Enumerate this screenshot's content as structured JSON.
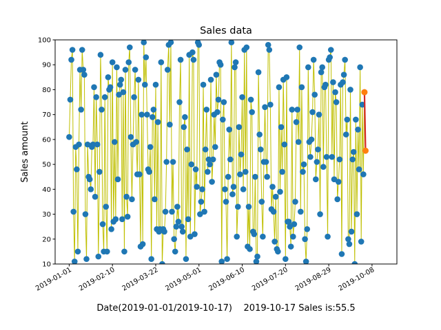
{
  "chart_data": {
    "type": "line",
    "title": "Sales data",
    "xlabel": "Date(2019-01-01/2019-10-17)    2019-10-17 Sales is:55.5",
    "ylabel": "Sales amount",
    "ylim": [
      10,
      100
    ],
    "yticks": [
      10,
      20,
      30,
      40,
      50,
      60,
      70,
      80,
      90,
      100
    ],
    "x_start": "2019-01-01",
    "x_end": "2019-10-17",
    "xlim": [
      "2018-12-19",
      "2019-10-31"
    ],
    "xticks": [
      "2019-01-01",
      "2019-02-10",
      "2019-03-22",
      "2019-05-01",
      "2019-06-10",
      "2019-07-20",
      "2019-08-29",
      "2019-10-08"
    ],
    "grid": false,
    "colors": {
      "line": "#bfbf00",
      "marker": "#1f77b4",
      "highlight_line": "#d62728",
      "highlight_marker": "#ff7f0e"
    },
    "values": [
      61,
      76,
      92,
      96,
      31,
      11,
      57,
      48,
      15,
      58,
      88,
      72,
      96,
      88,
      86,
      30,
      12,
      58,
      45,
      44,
      40,
      57,
      58,
      81,
      37,
      77,
      58,
      13,
      47,
      94,
      72,
      26,
      15,
      77,
      33,
      15,
      85,
      80,
      81,
      24,
      91,
      27,
      59,
      28,
      89,
      44,
      78,
      82,
      84,
      28,
      79,
      15,
      88,
      37,
      29,
      91,
      97,
      61,
      36,
      58,
      77,
      88,
      59,
      46,
      84,
      46,
      17,
      70,
      18,
      99,
      82,
      93,
      70,
      48,
      47,
      57,
      12,
      69,
      72,
      36,
      82,
      24,
      67,
      23,
      24,
      91,
      10,
      24,
      23,
      31,
      51,
      88,
      98,
      66,
      99,
      31,
      51,
      20,
      15,
      25,
      33,
      27,
      75,
      92,
      25,
      23,
      65,
      69,
      12,
      56,
      28,
      94,
      21,
      50,
      95,
      92,
      22,
      48,
      41,
      99,
      98,
      30,
      35,
      40,
      82,
      31,
      56,
      72,
      47,
      52,
      50,
      84,
      43,
      52,
      70,
      57,
      86,
      71,
      76,
      91,
      90,
      11,
      68,
      75,
      40,
      35,
      12,
      45,
      64,
      52,
      99,
      38,
      41,
      89,
      91,
      21,
      33,
      65,
      46,
      54,
      77,
      40,
      96,
      47,
      97,
      17,
      33,
      16,
      76,
      71,
      23,
      22,
      45,
      11,
      13,
      87,
      62,
      56,
      35,
      21,
      51,
      73,
      51,
      45,
      98,
      96,
      74,
      32,
      41,
      31,
      19,
      37,
      16,
      15,
      81,
      39,
      65,
      47,
      84,
      58,
      12,
      85,
      27,
      27,
      25,
      17,
      72,
      21,
      26,
      35,
      67,
      72,
      59,
      97,
      31,
      81,
      47,
      50,
      20,
      11,
      24,
      89,
      59,
      53,
      60,
      71,
      92,
      78,
      44,
      51,
      56,
      70,
      30,
      87,
      89,
      49,
      81,
      82,
      53,
      21,
      92,
      93,
      96,
      53,
      83,
      44,
      79,
      75,
      36,
      43,
      52,
      82,
      14,
      83,
      86,
      92,
      62,
      68,
      20,
      18,
      80,
      23,
      52,
      55,
      10,
      68,
      30,
      64,
      48,
      89,
      19,
      74,
      46,
      79,
      55.5
    ],
    "highlight": {
      "date": "2019-10-17",
      "from": 79,
      "to": 55.5
    }
  }
}
